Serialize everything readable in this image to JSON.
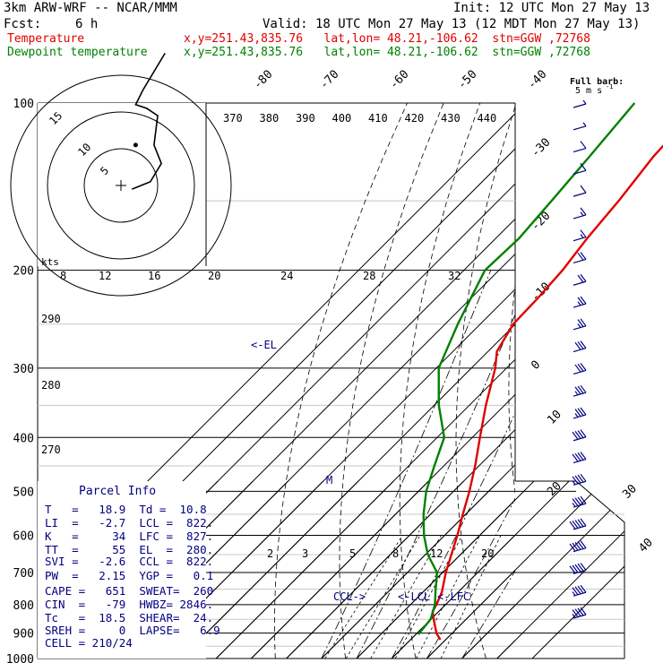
{
  "header": {
    "model": "3km ARW-WRF -- NCAR/MMM",
    "init": "Init: 12 UTC Mon 27 May 13",
    "fcst_label": "Fcst:",
    "fcst_value": "6 h",
    "valid": "Valid: 18 UTC Mon 27 May 13 (12 MDT Mon 27 May 13)",
    "temp_legend": "Temperature",
    "dew_legend": "Dewpoint temperature",
    "location_temp": "x,y=251.43,835.76   lat,lon= 48.21,-106.62  stn=GGW ,72768",
    "location_dew": "x,y=251.43,835.76   lat,lon= 48.21,-106.62  stn=GGW ,72768"
  },
  "colors": {
    "temperature": "#e00000",
    "dewpoint": "#008000",
    "parcel_text": "#000080",
    "grid": "#000000"
  },
  "wind_legend": {
    "line1": "Full barb:",
    "line2": "5 m s",
    "sup": "-1"
  },
  "parcel_info": {
    "title": "Parcel Info",
    "rows": [
      "T   =   18.9  Td =  10.8",
      "LI  =   -2.7  LCL =  822.",
      "K   =     34  LFC =  827.",
      "TT  =     55  EL  =  280.",
      "SVI =   -2.6  CCL =  822.",
      "PW  =   2.15  YGP =   0.1",
      "CAPE =   651  SWEAT=  260",
      "CIN  =   -79  HWBZ= 2846.",
      "Tc   =  18.5  SHEAR=  24.",
      "SREH =     0  LAPSE=   6.9",
      "CELL = 210/24"
    ]
  },
  "hodograph": {
    "unit_label": "kts",
    "ring_labels": [
      "5",
      "10",
      "15"
    ]
  },
  "annotations": {
    "el": "<-EL",
    "ccl": "CCL->",
    "lcl": "<-LCL",
    "lfc": "<-LFC",
    "m": "M"
  },
  "chart_data": {
    "type": "line",
    "title": "",
    "skew_degrees": 45,
    "pressure_levels": [
      100,
      200,
      300,
      400,
      500,
      600,
      700,
      800,
      900,
      1000
    ],
    "pressure_tick_labels": [
      "100",
      "200",
      "300",
      "400",
      "500",
      "600",
      "700",
      "800",
      "900",
      "1000"
    ],
    "temperature_tick_labels": [
      "-80",
      "-70",
      "-60",
      "-50",
      "-40",
      "-30",
      "-20",
      "-10",
      "0",
      "10",
      "20",
      "30",
      "40"
    ],
    "theta_labels": [
      "370",
      "380",
      "390",
      "400",
      "410",
      "420",
      "430",
      "440"
    ],
    "mixing_ratio_labels_top": [
      "8",
      "12",
      "16",
      "20",
      "24",
      "28",
      "32"
    ],
    "mixing_ratio_labels_bottom": [
      "2",
      "3",
      "5",
      "8",
      "12",
      "20"
    ],
    "theta_e_labels": [
      "290",
      "280",
      "270"
    ],
    "series": [
      {
        "name": "Temperature",
        "points": [
          {
            "p": 925,
            "t": 18.5
          },
          {
            "p": 900,
            "t": 15.5
          },
          {
            "p": 850,
            "t": 10.8
          },
          {
            "p": 822,
            "t": 8.2
          },
          {
            "p": 800,
            "t": 7.4
          },
          {
            "p": 760,
            "t": 5.4
          },
          {
            "p": 700,
            "t": 0.9
          },
          {
            "p": 650,
            "t": -2.6
          },
          {
            "p": 600,
            "t": -6.4
          },
          {
            "p": 550,
            "t": -10.8
          },
          {
            "p": 500,
            "t": -15.5
          },
          {
            "p": 450,
            "t": -21.1
          },
          {
            "p": 400,
            "t": -27.8
          },
          {
            "p": 350,
            "t": -35.3
          },
          {
            "p": 300,
            "t": -43.2
          },
          {
            "p": 280,
            "t": -47.5
          },
          {
            "p": 250,
            "t": -50.6
          },
          {
            "p": 225,
            "t": -51.0
          },
          {
            "p": 200,
            "t": -51.9
          },
          {
            "p": 175,
            "t": -54.0
          },
          {
            "p": 150,
            "t": -55.7
          },
          {
            "p": 125,
            "t": -58.4
          },
          {
            "p": 110,
            "t": -59.2
          },
          {
            "p": 100,
            "t": -59.6
          }
        ]
      },
      {
        "name": "Dewpoint temperature",
        "points": [
          {
            "p": 905,
            "t": 10.7
          },
          {
            "p": 850,
            "t": 9.9
          },
          {
            "p": 800,
            "t": 7.0
          },
          {
            "p": 760,
            "t": 3.6
          },
          {
            "p": 700,
            "t": -1.6
          },
          {
            "p": 650,
            "t": -9.3
          },
          {
            "p": 600,
            "t": -15.9
          },
          {
            "p": 550,
            "t": -22.0
          },
          {
            "p": 500,
            "t": -27.8
          },
          {
            "p": 450,
            "t": -32.7
          },
          {
            "p": 400,
            "t": -38.0
          },
          {
            "p": 350,
            "t": -48.7
          },
          {
            "p": 300,
            "t": -59.3
          },
          {
            "p": 250,
            "t": -66.4
          },
          {
            "p": 200,
            "t": -74.0
          },
          {
            "p": 175,
            "t": -73.4
          },
          {
            "p": 150,
            "t": -74.8
          },
          {
            "p": 125,
            "t": -76.6
          },
          {
            "p": 100,
            "t": -79.0
          }
        ]
      }
    ],
    "wind_profile_speeds_kts": [
      5,
      5,
      10,
      10,
      10,
      15,
      15,
      20,
      20,
      25,
      25,
      30,
      30,
      35,
      35,
      40,
      40,
      45,
      45,
      50,
      50,
      50,
      45,
      45
    ],
    "hodograph_points_kts": [
      {
        "u": 3,
        "v": -1
      },
      {
        "u": 8,
        "v": 1
      },
      {
        "u": 11,
        "v": 6
      },
      {
        "u": 9,
        "v": 11
      },
      {
        "u": 10,
        "v": 19
      },
      {
        "u": 7,
        "v": 21
      },
      {
        "u": 4,
        "v": 22
      },
      {
        "u": 6,
        "v": 26
      },
      {
        "u": 9,
        "v": 31
      },
      {
        "u": 12,
        "v": 36
      }
    ]
  }
}
